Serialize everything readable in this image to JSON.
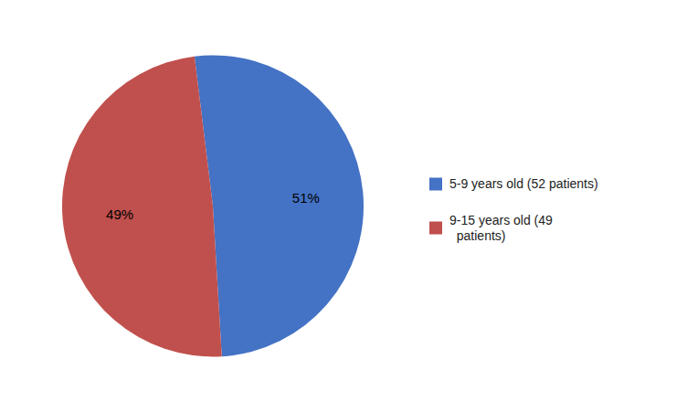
{
  "chart_data": {
    "type": "pie",
    "categories": [
      "5-9 years old (52 patients)",
      "9-15 years old (49\n  patients)"
    ],
    "values": [
      51,
      49
    ],
    "value_labels": [
      "51%",
      "49%"
    ],
    "data_labels": true,
    "colors": [
      "#4472C4",
      "#C0504D"
    ],
    "legend": "right"
  }
}
